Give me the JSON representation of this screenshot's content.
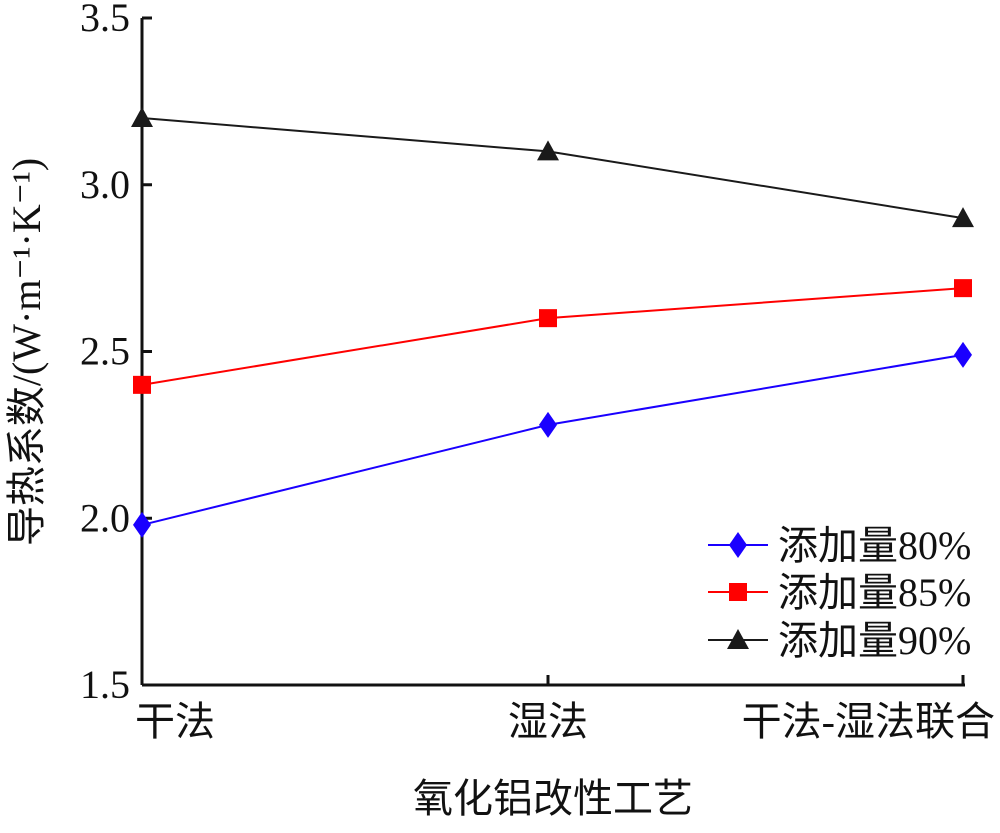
{
  "chart_data": {
    "type": "line",
    "categories": [
      "干法",
      "湿法",
      "干法-湿法联合"
    ],
    "series": [
      {
        "name": "添加量80%",
        "values": [
          1.98,
          2.28,
          2.49
        ],
        "color": "#1a00ff",
        "marker": "diamond"
      },
      {
        "name": "添加量85%",
        "values": [
          2.4,
          2.6,
          2.69
        ],
        "color": "#ff0000",
        "marker": "square"
      },
      {
        "name": "添加量90%",
        "values": [
          3.2,
          3.1,
          2.9
        ],
        "color": "#1a1a1a",
        "marker": "triangle"
      }
    ],
    "xlabel": "氧化铝改性工艺",
    "ylabel": "导热系数/(W·m⁻¹·K⁻¹)",
    "ylim": [
      1.5,
      3.5
    ],
    "yticks": [
      "1.5",
      "2.0",
      "2.5",
      "3.0",
      "3.5"
    ],
    "grid": false,
    "legend_position": "bottom-right"
  }
}
